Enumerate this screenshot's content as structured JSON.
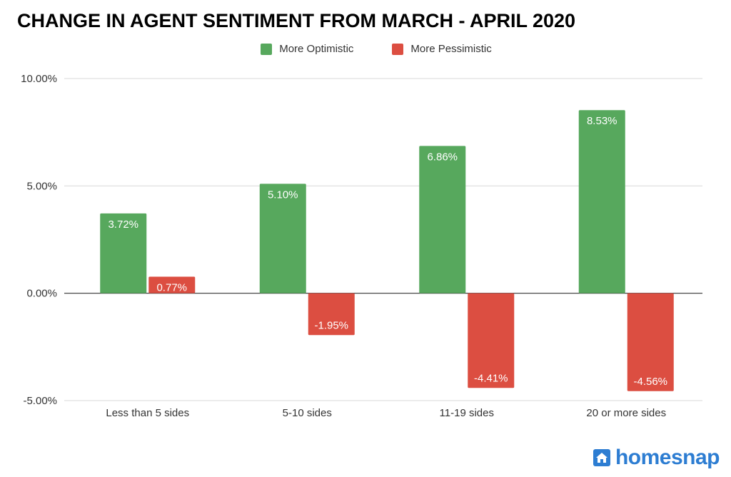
{
  "chart_data": {
    "type": "bar",
    "title": "CHANGE IN AGENT SENTIMENT FROM MARCH - APRIL 2020",
    "xlabel": "",
    "ylabel": "",
    "categories": [
      "Less than 5 sides",
      "5-10 sides",
      "11-19 sides",
      "20 or more sides"
    ],
    "series": [
      {
        "name": "More Optimistic",
        "color": "#57a85d",
        "values": [
          3.72,
          5.1,
          6.86,
          8.53
        ],
        "labels": [
          "3.72%",
          "5.10%",
          "6.86%",
          "8.53%"
        ]
      },
      {
        "name": "More Pessimistic",
        "color": "#dc4e41",
        "values": [
          0.77,
          -1.95,
          -4.41,
          -4.56
        ],
        "labels": [
          "0.77%",
          "-1.95%",
          "-4.41%",
          "-4.56%"
        ]
      }
    ],
    "ylim": [
      -5,
      10
    ],
    "yticks": [
      10,
      5,
      0,
      -5
    ],
    "ytick_labels": [
      "10.00%",
      "5.00%",
      "0.00%",
      "-5.00%"
    ],
    "grid": true,
    "legend_position": "top-center"
  },
  "branding": {
    "logo_text": "homesnap",
    "logo_color": "#2d7dd2"
  }
}
